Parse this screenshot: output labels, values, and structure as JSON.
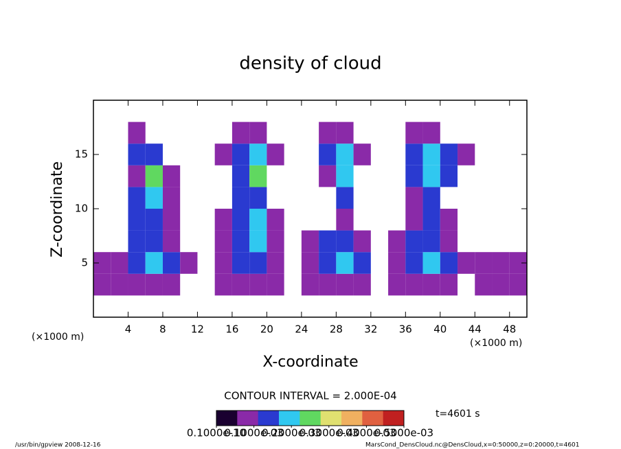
{
  "chart_data": {
    "type": "heatmap",
    "title": "density of cloud",
    "x_label": "X-coordinate",
    "y_label": "Z-coordinate",
    "x_unit": "(×1000 m)",
    "y_unit": "(×1000 m)",
    "contour_interval": "CONTOUR INTERVAL = 2.000E-04",
    "time_label": "t=4601 s",
    "footer_left": "/usr/bin/gpview   2008-12-16",
    "footer_right": "MarsCond_DensCloud.nc@DensCloud,x=0:50000,z=0:20000,t=4601",
    "xlim": [
      0,
      50
    ],
    "xticks": [
      4,
      8,
      12,
      16,
      20,
      24,
      28,
      32,
      36,
      40,
      44,
      48
    ],
    "ylim": [
      0,
      20
    ],
    "yticks": [
      5,
      10,
      15
    ],
    "x": [
      1,
      3,
      5,
      7,
      9,
      11,
      13,
      15,
      17,
      19,
      21,
      23,
      25,
      27,
      29,
      31,
      33,
      35,
      37,
      39,
      41,
      43,
      45,
      47,
      49
    ],
    "y": [
      3,
      5,
      7,
      9,
      11,
      13,
      15,
      17
    ],
    "z": [
      [
        1e-05,
        1e-05,
        1e-05,
        1e-05,
        1e-05,
        0,
        0,
        1e-05,
        1e-05,
        1e-05,
        1e-05,
        0,
        1e-05,
        1e-05,
        1e-05,
        1e-05,
        0,
        1e-05,
        1e-05,
        1e-05,
        1e-05,
        0,
        1e-05,
        1e-05,
        1e-05
      ],
      [
        1e-05,
        1e-05,
        8e-05,
        0.00014,
        8e-05,
        1e-05,
        0,
        1e-05,
        8e-05,
        8e-05,
        1e-05,
        0,
        1e-05,
        8e-05,
        0.00014,
        8e-05,
        0,
        1e-05,
        8e-05,
        0.00014,
        8e-05,
        1e-05,
        1e-05,
        1e-05,
        1e-05
      ],
      [
        0,
        0,
        8e-05,
        8e-05,
        1e-05,
        0,
        0,
        1e-05,
        8e-05,
        0.00014,
        1e-05,
        0,
        1e-05,
        8e-05,
        8e-05,
        1e-05,
        0,
        1e-05,
        8e-05,
        8e-05,
        1e-05,
        0,
        0,
        0,
        0
      ],
      [
        0,
        0,
        8e-05,
        8e-05,
        1e-05,
        0,
        0,
        1e-05,
        8e-05,
        0.00014,
        1e-05,
        0,
        0,
        0,
        1e-05,
        0,
        0,
        0,
        1e-05,
        8e-05,
        1e-05,
        0,
        0,
        0,
        0
      ],
      [
        0,
        0,
        8e-05,
        0.00014,
        1e-05,
        0,
        0,
        0,
        8e-05,
        8e-05,
        0,
        0,
        0,
        0,
        8e-05,
        0,
        0,
        0,
        1e-05,
        8e-05,
        0,
        0,
        0,
        0,
        0
      ],
      [
        0,
        0,
        1e-05,
        0.00022,
        1e-05,
        0,
        0,
        0,
        8e-05,
        0.00022,
        0,
        0,
        0,
        1e-05,
        0.00014,
        0,
        0,
        0,
        8e-05,
        0.00014,
        8e-05,
        0,
        0,
        0,
        0
      ],
      [
        0,
        0,
        8e-05,
        8e-05,
        0,
        0,
        0,
        1e-05,
        8e-05,
        0.00014,
        1e-05,
        0,
        0,
        8e-05,
        0.00014,
        1e-05,
        0,
        0,
        8e-05,
        0.00014,
        8e-05,
        1e-05,
        0,
        0,
        0
      ],
      [
        0,
        0,
        1e-05,
        0,
        0,
        0,
        0,
        0,
        1e-05,
        1e-05,
        0,
        0,
        0,
        1e-05,
        1e-05,
        0,
        0,
        0,
        1e-05,
        1e-05,
        0,
        0,
        0,
        0,
        0
      ]
    ],
    "colors": [
      "#1a0030",
      "#8a2aa8",
      "#2a3ad0",
      "#30c8f0",
      "#60d860",
      "#e0e070",
      "#f0b060",
      "#e06040",
      "#c02020"
    ],
    "clim": [
      0,
      0.0005
    ],
    "cticks": [
      {
        "value": 1e-11,
        "label": "0.1000e-10"
      },
      {
        "value": 0.0001,
        "label": "0.1000e-03"
      },
      {
        "value": 0.0002,
        "label": "0.2000e-03"
      },
      {
        "value": 0.0003,
        "label": "0.3000e-03"
      },
      {
        "value": 0.0004,
        "label": "0.4000e-03"
      },
      {
        "value": 0.0005,
        "label": "0.5000e-03"
      }
    ]
  }
}
